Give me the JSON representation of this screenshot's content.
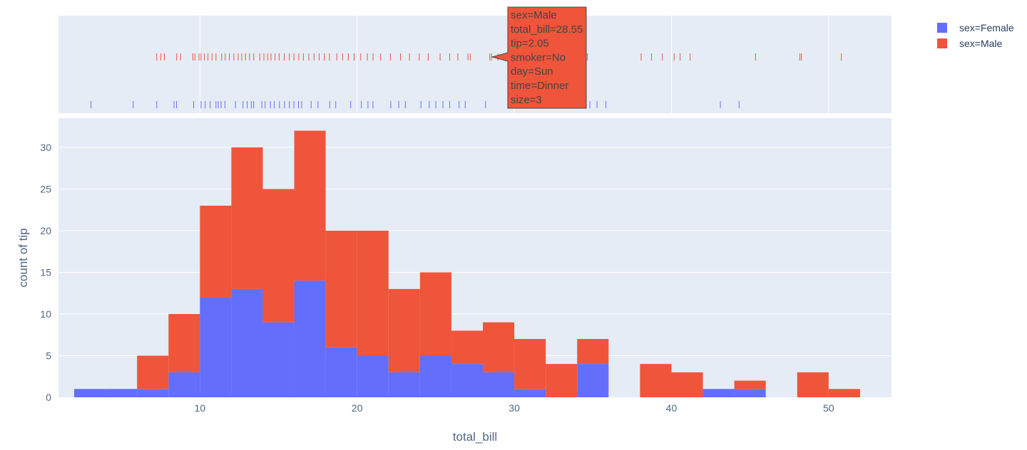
{
  "chart_data": {
    "type": "bar",
    "barmode": "stack",
    "xlabel": "total_bill",
    "ylabel": "count of tip",
    "xlim": [
      1,
      54
    ],
    "ylim": [
      0,
      33.5
    ],
    "xticks": [
      "10",
      "20",
      "30",
      "40",
      "50"
    ],
    "xtick_values": [
      10,
      20,
      30,
      40,
      50
    ],
    "yticks": [
      "0",
      "5",
      "10",
      "15",
      "20",
      "25",
      "30"
    ],
    "ytick_values": [
      0,
      5,
      10,
      15,
      20,
      25,
      30
    ],
    "bin_edges": [
      2,
      4,
      6,
      8,
      10,
      12,
      14,
      16,
      18,
      20,
      22,
      24,
      26,
      28,
      30,
      32,
      34,
      36,
      38,
      40,
      42,
      44,
      46,
      48,
      50,
      52
    ],
    "series": [
      {
        "name": "sex=Female",
        "color": "#636efa",
        "values": [
          1,
          1,
          1,
          3,
          12,
          13,
          9,
          14,
          6,
          5,
          3,
          5,
          4,
          3,
          1,
          0,
          4,
          0,
          0,
          0,
          1,
          1,
          0,
          0,
          0
        ],
        "rug": [
          3.07,
          5.75,
          7.25,
          8.35,
          8.51,
          9.6,
          10.07,
          10.33,
          10.65,
          11.02,
          11.17,
          11.35,
          11.59,
          12.26,
          12.74,
          13.0,
          13.27,
          13.42,
          13.94,
          14.15,
          14.48,
          14.73,
          15.06,
          15.38,
          15.69,
          15.98,
          16.27,
          16.47,
          17.07,
          17.51,
          18.26,
          18.64,
          19.59,
          20.27,
          20.69,
          21.01,
          22.14,
          22.65,
          23.07,
          24.06,
          24.59,
          25.01,
          25.46,
          25.89,
          26.49,
          26.88,
          28.17,
          34.81,
          35.26,
          35.83,
          43.11,
          44.3
        ]
      },
      {
        "name": "sex=Male",
        "color": "#ef553b",
        "values": [
          0,
          0,
          4,
          7,
          11,
          17,
          16,
          18,
          14,
          15,
          10,
          10,
          4,
          6,
          6,
          4,
          3,
          0,
          4,
          3,
          0,
          1,
          0,
          3,
          1
        ],
        "rug": [
          7.25,
          7.51,
          7.74,
          8.52,
          8.77,
          9.55,
          9.68,
          9.94,
          10.07,
          10.29,
          10.51,
          10.77,
          11.02,
          11.38,
          11.61,
          11.87,
          12.16,
          12.43,
          12.66,
          12.9,
          13.16,
          13.42,
          13.81,
          14.07,
          14.31,
          14.52,
          14.78,
          15.04,
          15.36,
          15.69,
          15.98,
          16.29,
          16.58,
          16.93,
          17.26,
          17.59,
          17.92,
          18.24,
          18.71,
          19.08,
          19.44,
          19.81,
          20.23,
          20.65,
          21.01,
          21.5,
          22.12,
          22.76,
          23.33,
          23.95,
          24.52,
          25.28,
          25.89,
          26.41,
          27.05,
          27.2,
          28.44,
          28.55,
          28.97,
          29.85,
          30.4,
          31.27,
          31.71,
          32.4,
          34.3,
          34.65,
          38.07,
          38.73,
          39.42,
          40.17,
          40.55,
          41.19,
          45.35,
          48.17,
          48.27,
          50.81
        ]
      }
    ],
    "legend_position": "top-right",
    "tooltip": {
      "lines": [
        "sex=Male",
        "total_bill=28.55",
        "tip=2.05",
        "smoker=No",
        "day=Sun",
        "time=Dinner",
        "size=3"
      ],
      "anchor_x": 28.55,
      "series": "sex=Male"
    }
  }
}
